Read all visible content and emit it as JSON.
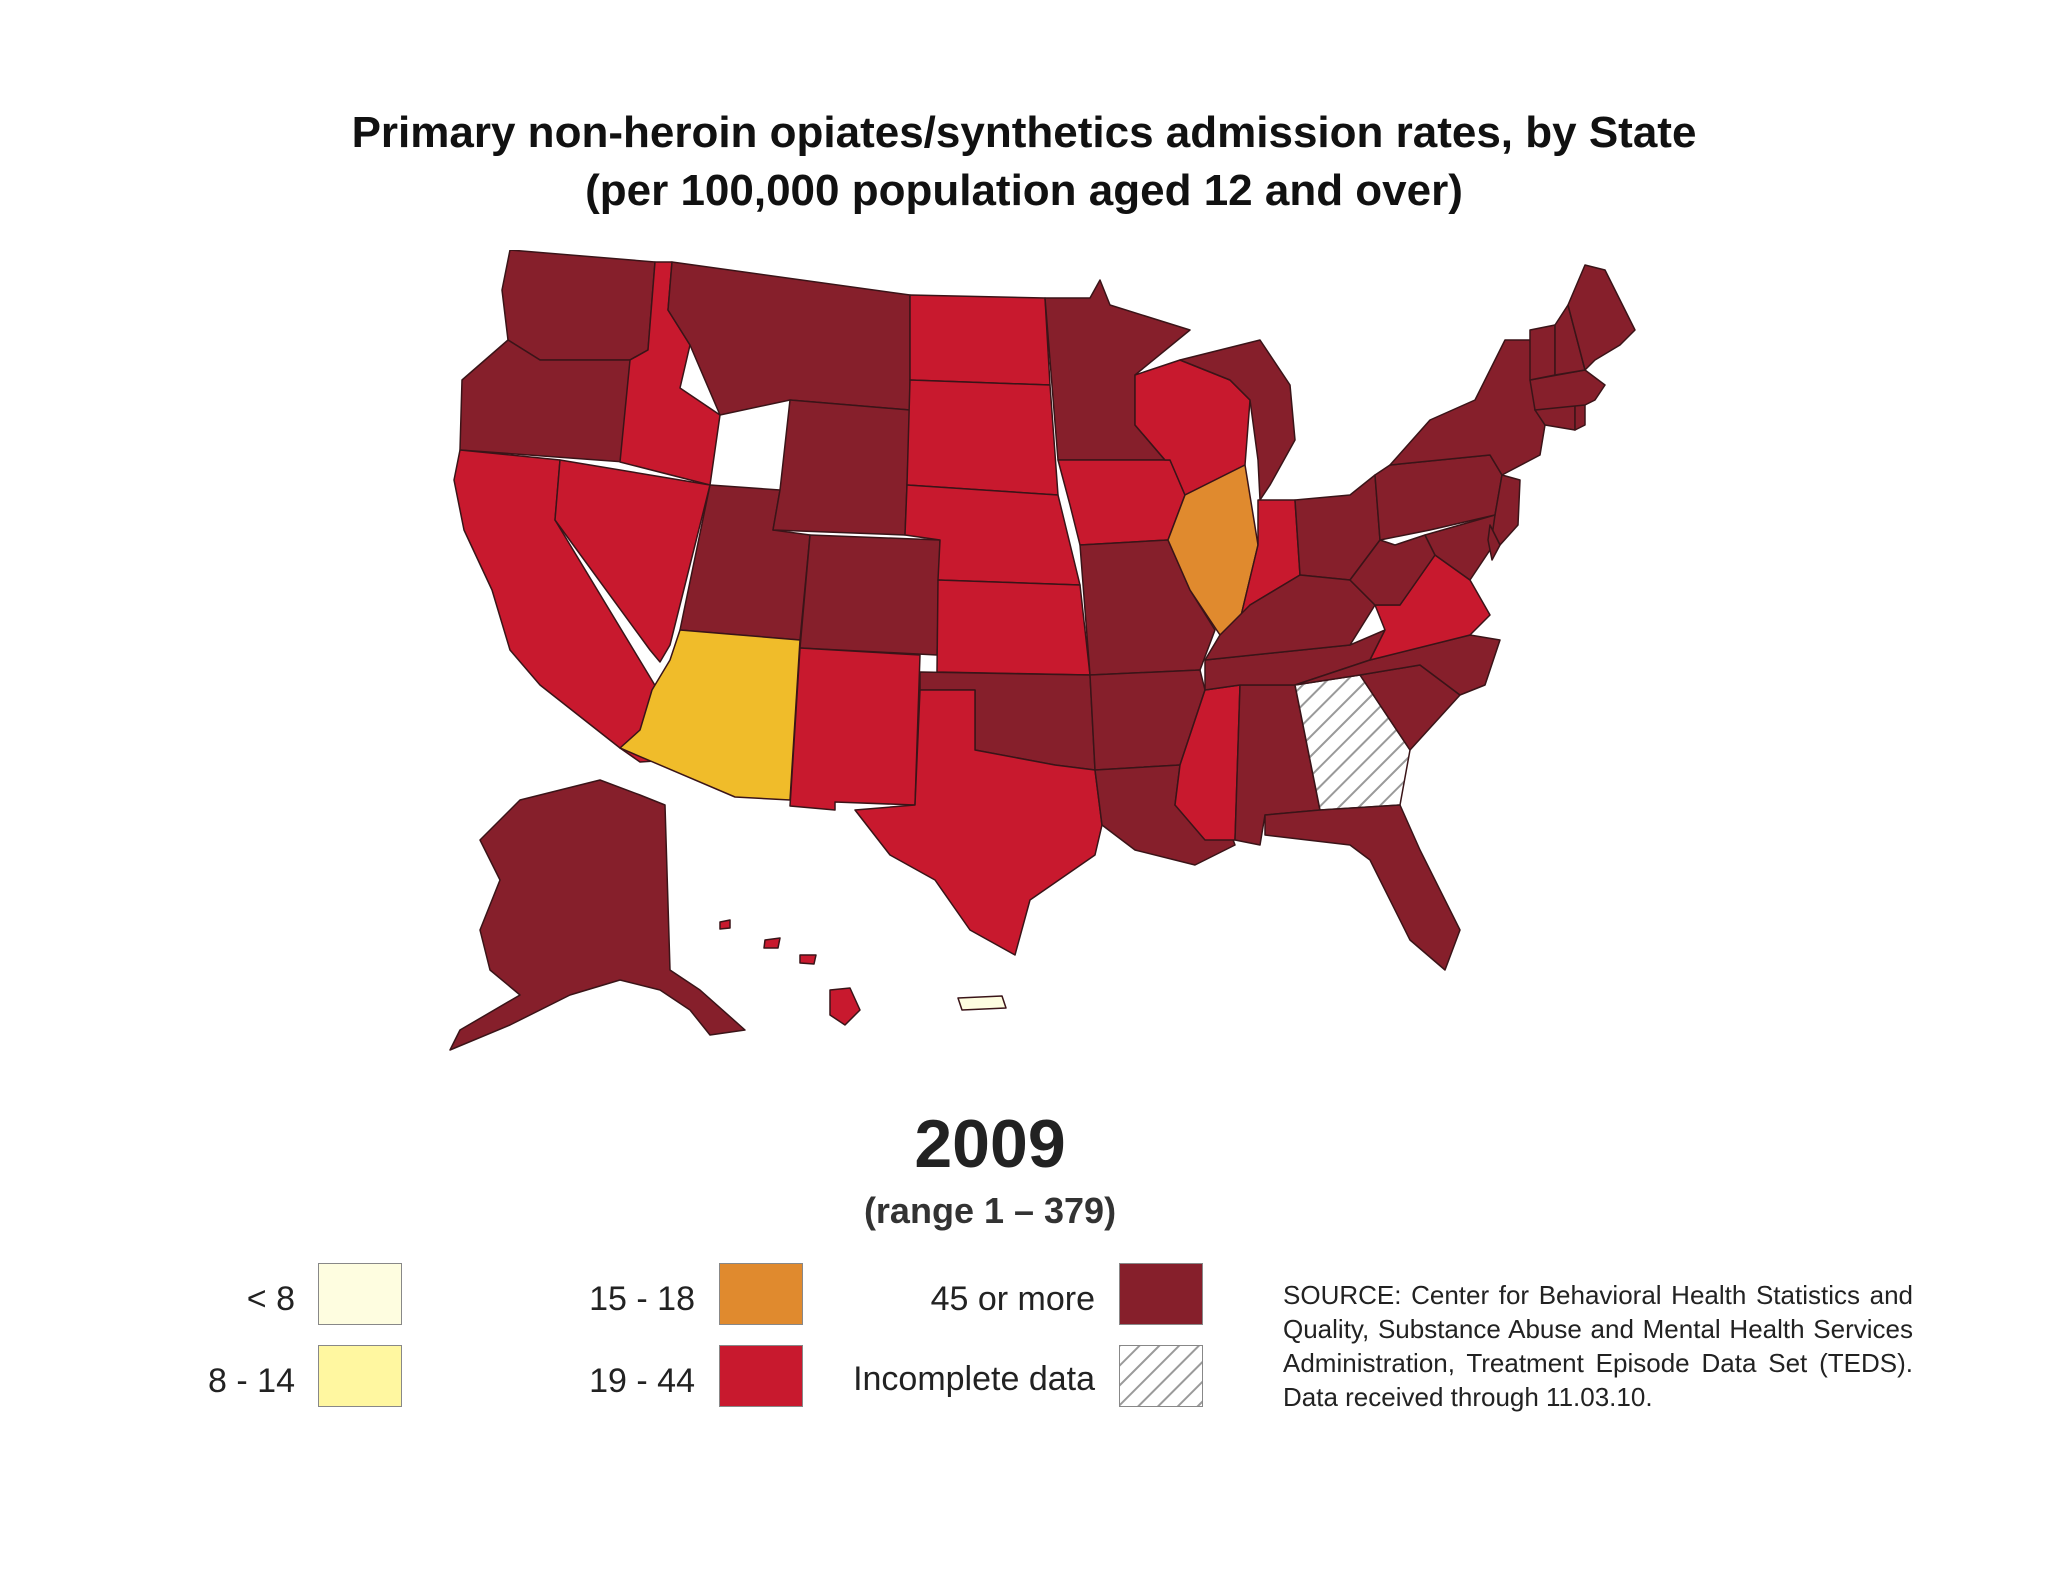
{
  "title": {
    "line1": "Primary non-heroin opiates/synthetics admission rates, by State",
    "line2": "(per 100,000 population aged 12 and over)"
  },
  "year": "2009",
  "range": "(range 1 – 379)",
  "colors": {
    "lt8": "#fefde0",
    "c8_14": "#fff7a0",
    "c15_18": "#e08a2e",
    "c19_44": "#c8192e",
    "c45plus": "#861f2b",
    "arizona": "#f0bc2a",
    "border": "#3a1418"
  },
  "legend": [
    {
      "label": "< 8",
      "color": "#fefde0"
    },
    {
      "label": "8 - 14",
      "color": "#fff7a0"
    },
    {
      "label": "15 - 18",
      "color": "#e08a2e"
    },
    {
      "label": "19 - 44",
      "color": "#c8192e"
    },
    {
      "label": "45 or more",
      "color": "#861f2b"
    },
    {
      "label": "Incomplete data",
      "color": "hatch"
    }
  ],
  "source": "SOURCE: Center for Behavioral Health Statistics and Quality, Substance Abuse and Mental Health Services Administration, Treatment Episode Data Set (TEDS). Data received through 11.03.10."
}
